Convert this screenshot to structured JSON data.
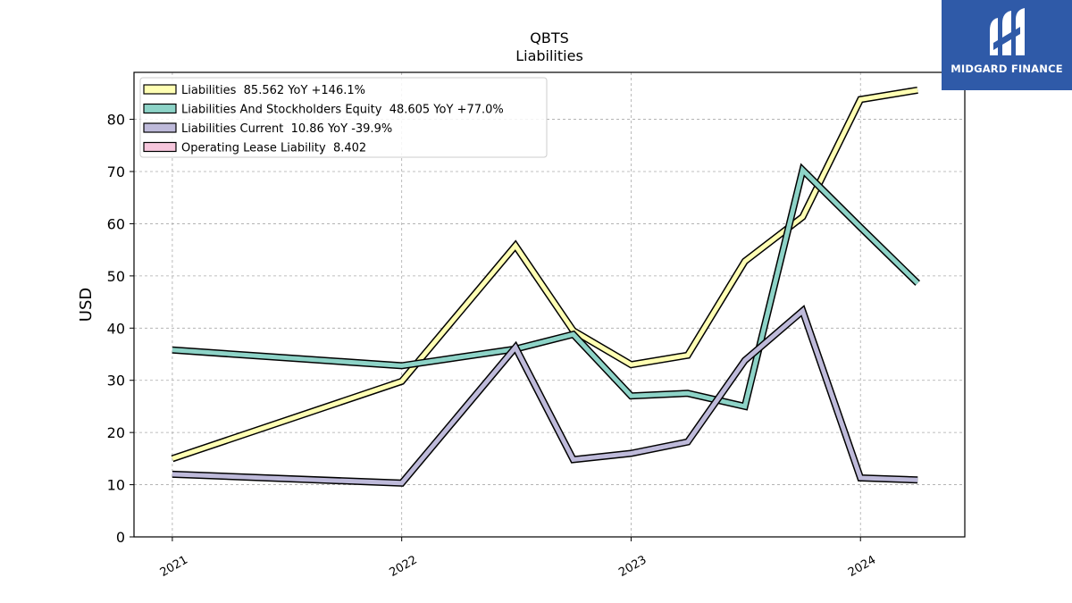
{
  "chart_data": {
    "type": "line",
    "title": "QBTS",
    "subtitle": "Liabilities",
    "ylabel": "USD",
    "xlabel": "",
    "ylim": [
      0,
      89
    ],
    "yticks": [
      0,
      10,
      20,
      30,
      40,
      50,
      60,
      70,
      80
    ],
    "xlim": [
      "2020-11-01",
      "2024-06-15"
    ],
    "xticks": [
      {
        "date": "2021-01-01",
        "label": "2021"
      },
      {
        "date": "2022-01-01",
        "label": "2022"
      },
      {
        "date": "2023-01-01",
        "label": "2023"
      },
      {
        "date": "2024-01-01",
        "label": "2024"
      }
    ],
    "grid": true,
    "legend_position": "top-left",
    "series": [
      {
        "name": "Liabilities",
        "legend": "Liabilities  85.562 YoY +146.1%",
        "color": "#ffffb3",
        "points": [
          {
            "x": "2021-01-01",
            "y": 15.0
          },
          {
            "x": "2022-01-01",
            "y": 29.8
          },
          {
            "x": "2022-07-01",
            "y": 55.8
          },
          {
            "x": "2022-10-01",
            "y": 39.5
          },
          {
            "x": "2023-01-01",
            "y": 33.0
          },
          {
            "x": "2023-04-01",
            "y": 34.8
          },
          {
            "x": "2023-07-01",
            "y": 52.8
          },
          {
            "x": "2023-10-01",
            "y": 61.3
          },
          {
            "x": "2024-01-01",
            "y": 83.8
          },
          {
            "x": "2024-04-01",
            "y": 85.6
          }
        ]
      },
      {
        "name": "Liabilities And Stockholders Equity",
        "legend": "Liabilities And Stockholders Equity  48.605 YoY +77.0%",
        "color": "#8dd3c7",
        "points": [
          {
            "x": "2021-01-01",
            "y": 35.8
          },
          {
            "x": "2022-01-01",
            "y": 32.8
          },
          {
            "x": "2022-07-01",
            "y": 36.0
          },
          {
            "x": "2022-10-01",
            "y": 38.8
          },
          {
            "x": "2023-01-01",
            "y": 27.0
          },
          {
            "x": "2023-04-01",
            "y": 27.5
          },
          {
            "x": "2023-07-01",
            "y": 25.0
          },
          {
            "x": "2023-10-01",
            "y": 70.3
          },
          {
            "x": "2024-01-01",
            "y": 59.3
          },
          {
            "x": "2024-04-01",
            "y": 48.6
          }
        ]
      },
      {
        "name": "Liabilities Current",
        "legend": "Liabilities Current  10.86 YoY -39.9%",
        "color": "#bebada",
        "points": [
          {
            "x": "2021-01-01",
            "y": 12.0
          },
          {
            "x": "2022-01-01",
            "y": 10.3
          },
          {
            "x": "2022-07-01",
            "y": 36.3
          },
          {
            "x": "2022-10-01",
            "y": 14.8
          },
          {
            "x": "2023-01-01",
            "y": 16.0
          },
          {
            "x": "2023-04-01",
            "y": 18.2
          },
          {
            "x": "2023-07-01",
            "y": 33.8
          },
          {
            "x": "2023-10-01",
            "y": 43.3
          },
          {
            "x": "2024-01-01",
            "y": 11.3
          },
          {
            "x": "2024-04-01",
            "y": 10.9
          }
        ]
      },
      {
        "name": "Operating Lease Liability",
        "legend": "Operating Lease Liability  8.402",
        "color": "#f6c6dc",
        "points": []
      }
    ]
  },
  "logo": {
    "text": "MIDGARD FINANCE",
    "background": "#2f5aa8"
  }
}
